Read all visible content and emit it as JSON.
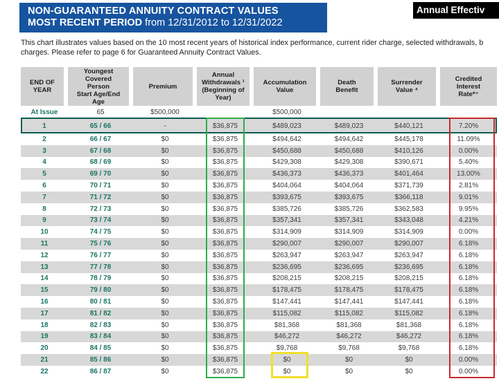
{
  "banner": {
    "line1": "NON-GUARANTEED ANNUITY CONTRACT VALUES",
    "line2_bold": "MOST RECENT PERIOD",
    "line2_rest": " from 12/31/2012 to 12/31/2022"
  },
  "corner_label": "Annual Effectiv",
  "disclaimer": {
    "line1": "This chart illustrates values based on the 10 most recent years of historical index performance, current rider charge, selected withdrawals, b",
    "line2": "charges. Please refer to page 6 for Guaranteed Annuity Contract Values."
  },
  "colors": {
    "banner_blue": "#17549F",
    "teal_text": "#1B7563",
    "row1_outline": "#0C5E4F",
    "withdrawals_box_green": "#2EAE4B",
    "interest_rate_box_red": "#C9282D",
    "zero_value_box_yellow": "#F2DF2B",
    "stripe_gray": "#D8D8D8",
    "header_gray": "#D1D1D1",
    "value_text": "#3B3B3B"
  },
  "table": {
    "header_keys": [
      "end-of-year",
      "youngest-covered-person-ages",
      "premium",
      "annual-withdrawals",
      "accumulation-value",
      "death-benefit",
      "surrender-value",
      "credited-interest-rate"
    ],
    "headers": [
      "END OF\nYEAR",
      "Youngest\nCovered\nPerson\nStart Age/End\nAge",
      "Premium",
      "Annual\nWithdrawals ¹\n(Beginning of\nYear)",
      "Accumulation\nValue",
      "Death\nBenefit",
      "Surrender\nValue ⁴",
      "Credited\nInterest\nRate*⁺"
    ],
    "at_issue": [
      "At Issue",
      "65",
      "$500,000",
      "",
      "$500,000",
      "",
      "",
      ""
    ],
    "rows": [
      [
        "1",
        "65 / 66",
        "-",
        "$36,875",
        "$489,023",
        "$489,023",
        "$440,121",
        "7.20%"
      ],
      [
        "2",
        "66 / 67",
        "$0",
        "$36,875",
        "$494,642",
        "$494,642",
        "$445,178",
        "11.09%"
      ],
      [
        "3",
        "67 / 68",
        "$0",
        "$36,875",
        "$450,688",
        "$450,688",
        "$410,126",
        "0.00%"
      ],
      [
        "4",
        "68 / 69",
        "$0",
        "$36,875",
        "$429,308",
        "$429,308",
        "$390,671",
        "5.40%"
      ],
      [
        "5",
        "69 / 70",
        "$0",
        "$36,875",
        "$436,373",
        "$436,373",
        "$401,464",
        "13.00%"
      ],
      [
        "6",
        "70 / 71",
        "$0",
        "$36,875",
        "$404,064",
        "$404,064",
        "$371,739",
        "2.81%"
      ],
      [
        "7",
        "71 / 72",
        "$0",
        "$36,875",
        "$393,675",
        "$393,675",
        "$366,118",
        "9.01%"
      ],
      [
        "8",
        "72 / 73",
        "$0",
        "$36,875",
        "$385,726",
        "$385,726",
        "$362,583",
        "9.95%"
      ],
      [
        "9",
        "73 / 74",
        "$0",
        "$36,875",
        "$357,341",
        "$357,341",
        "$343,048",
        "4.21%"
      ],
      [
        "10",
        "74 / 75",
        "$0",
        "$36,875",
        "$314,909",
        "$314,909",
        "$314,909",
        "0.00%"
      ],
      [
        "11",
        "75 / 76",
        "$0",
        "$36,875",
        "$290,007",
        "$290,007",
        "$290,007",
        "6.18%"
      ],
      [
        "12",
        "76 / 77",
        "$0",
        "$36,875",
        "$263,947",
        "$263,947",
        "$263,947",
        "6.18%"
      ],
      [
        "13",
        "77 / 78",
        "$0",
        "$36,875",
        "$236,695",
        "$236,695",
        "$236,695",
        "6.18%"
      ],
      [
        "14",
        "78 / 79",
        "$0",
        "$36,875",
        "$208,215",
        "$208,215",
        "$208,215",
        "6.18%"
      ],
      [
        "15",
        "79 / 80",
        "$0",
        "$36,875",
        "$178,475",
        "$178,475",
        "$178,475",
        "6.18%"
      ],
      [
        "16",
        "80 / 81",
        "$0",
        "$36,875",
        "$147,441",
        "$147,441",
        "$147,441",
        "6.18%"
      ],
      [
        "17",
        "81 / 82",
        "$0",
        "$36,875",
        "$115,082",
        "$115,082",
        "$115,082",
        "6.18%"
      ],
      [
        "18",
        "82 / 83",
        "$0",
        "$36,875",
        "$81,368",
        "$81,368",
        "$81,368",
        "6.18%"
      ],
      [
        "19",
        "83 / 84",
        "$0",
        "$36,875",
        "$46,272",
        "$46,272",
        "$46,272",
        "6.18%"
      ],
      [
        "20",
        "84 / 85",
        "$0",
        "$36,875",
        "$9,768",
        "$9,768",
        "$9,768",
        "6.18%"
      ],
      [
        "21",
        "85 / 86",
        "$0",
        "$36,875",
        "$0",
        "$0",
        "$0",
        "0.00%"
      ],
      [
        "22",
        "86 / 87",
        "$0",
        "$36,875",
        "$0",
        "$0",
        "$0",
        "0.00%"
      ]
    ]
  }
}
